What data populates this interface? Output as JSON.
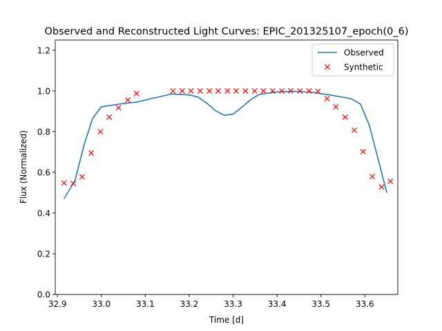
{
  "chart_data": {
    "type": "line",
    "title": "Observed and Reconstructed Light Curves: EPIC_201325107_epoch(0_6)",
    "xlabel": "Time [d]",
    "ylabel": "Flux (Normalized)",
    "xlim": [
      32.895,
      33.675
    ],
    "ylim": [
      0.0,
      1.25
    ],
    "xticks": [
      32.9,
      33.0,
      33.1,
      33.2,
      33.3,
      33.4,
      33.5,
      33.6
    ],
    "xtick_labels": [
      "32.9",
      "33.0",
      "33.1",
      "33.2",
      "33.3",
      "33.4",
      "33.5",
      "33.6"
    ],
    "yticks": [
      0.0,
      0.2,
      0.4,
      0.6,
      0.8,
      1.0,
      1.2
    ],
    "ytick_labels": [
      "0.0",
      "0.2",
      "0.4",
      "0.6",
      "0.8",
      "1.0",
      "1.2"
    ],
    "legend_position": "top-right",
    "grid": false,
    "series": [
      {
        "name": "Observed",
        "kind": "line",
        "color": "#1f77b4",
        "x": [
          32.915,
          32.94,
          32.96,
          32.98,
          33.0,
          33.04,
          33.08,
          33.12,
          33.16,
          33.2,
          33.22,
          33.24,
          33.26,
          33.28,
          33.3,
          33.32,
          33.34,
          33.36,
          33.4,
          33.44,
          33.48,
          33.52,
          33.56,
          33.57,
          33.59,
          33.61,
          33.65
        ],
        "y": [
          0.47,
          0.56,
          0.73,
          0.865,
          0.922,
          0.935,
          0.945,
          0.965,
          0.985,
          0.98,
          0.97,
          0.94,
          0.903,
          0.88,
          0.886,
          0.92,
          0.957,
          0.983,
          0.995,
          0.998,
          0.993,
          0.98,
          0.965,
          0.96,
          0.935,
          0.832,
          0.5
        ]
      },
      {
        "name": "Synthetic",
        "kind": "scatter",
        "marker": "x",
        "color": "#ff0000",
        "x": [
          32.915,
          32.936,
          32.956,
          32.977,
          32.998,
          33.018,
          33.039,
          33.06,
          33.08,
          33.163,
          33.184,
          33.204,
          33.225,
          33.246,
          33.266,
          33.287,
          33.307,
          33.328,
          33.349,
          33.369,
          33.39,
          33.411,
          33.431,
          33.452,
          33.473,
          33.493,
          33.514,
          33.534,
          33.555,
          33.576,
          33.596,
          33.617,
          33.638,
          33.658
        ],
        "y": [
          0.548,
          0.545,
          0.578,
          0.695,
          0.8,
          0.871,
          0.917,
          0.955,
          0.988,
          1.0,
          1.0,
          1.0,
          1.0,
          1.0,
          1.0,
          1.0,
          1.0,
          1.0,
          1.0,
          1.0,
          1.0,
          1.0,
          1.0,
          1.0,
          1.0,
          0.998,
          0.962,
          0.922,
          0.871,
          0.807,
          0.702,
          0.579,
          0.528,
          0.556
        ]
      }
    ]
  }
}
